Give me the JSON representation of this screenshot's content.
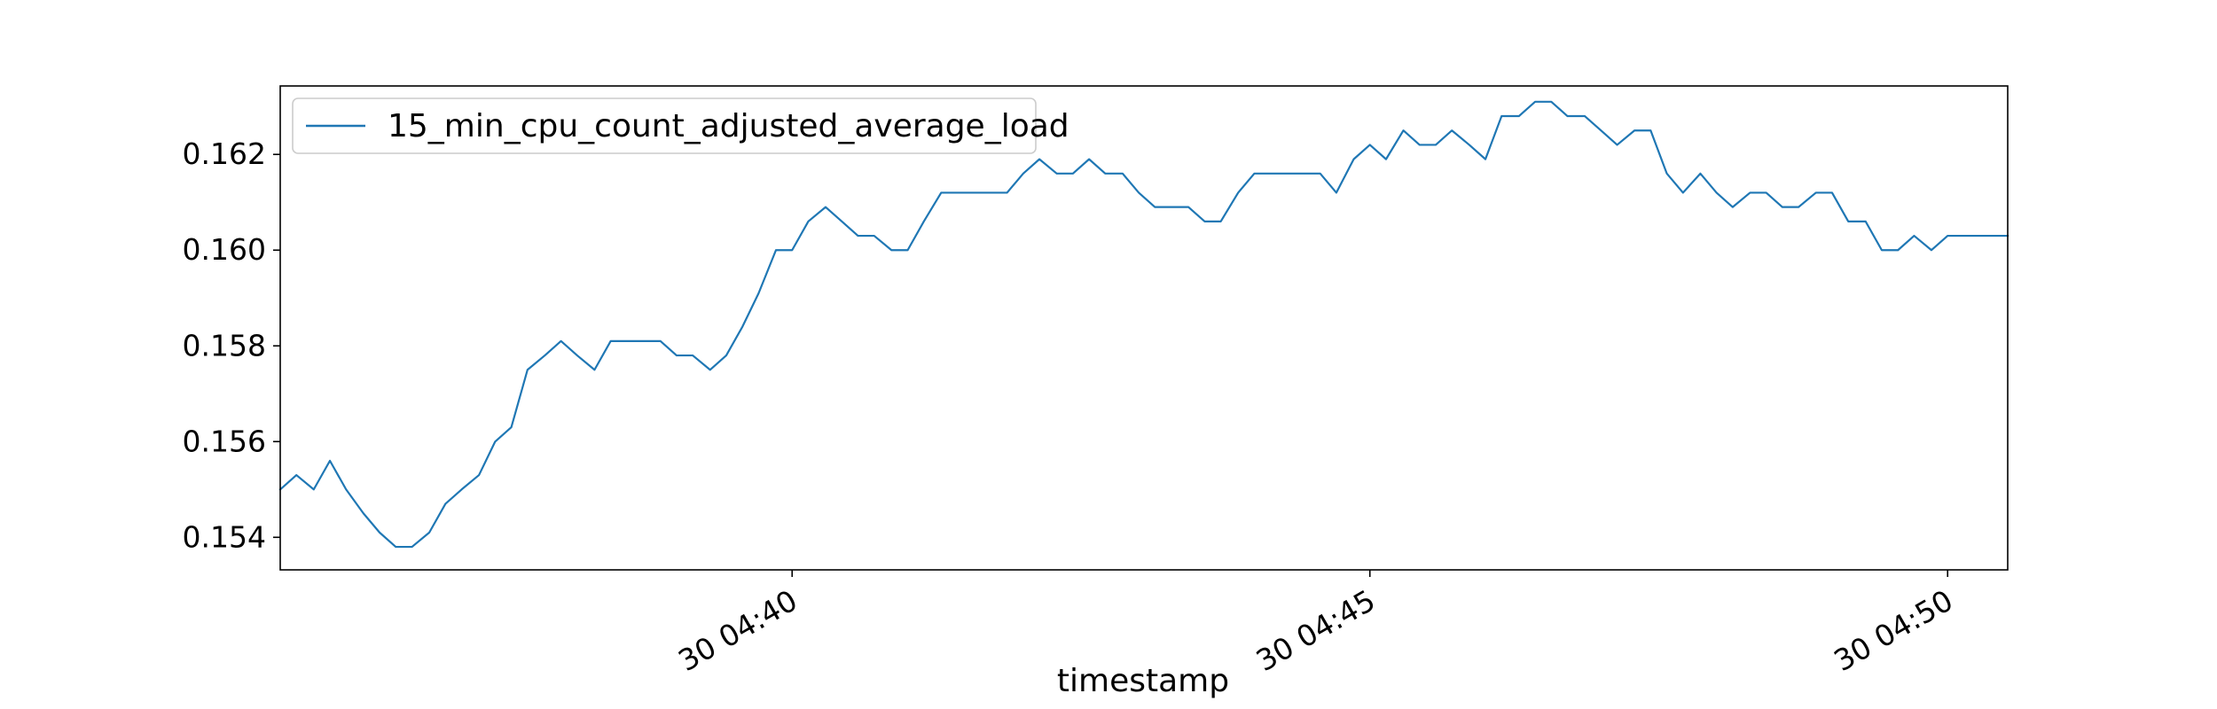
{
  "chart_data": {
    "type": "line",
    "title": "",
    "xlabel": "timestamp",
    "ylabel": "",
    "x_unit": "minutes",
    "x_start": "30 04:35:30",
    "x_tick_labels": [
      "30 04:40",
      "30 04:45",
      "30 04:50"
    ],
    "x_tick_values": [
      40.0,
      45.0,
      50.0
    ],
    "xlim": [
      35.57,
      50.52
    ],
    "y_tick_values": [
      0.154,
      0.156,
      0.158,
      0.16,
      0.162
    ],
    "y_tick_labels": [
      "0.154",
      "0.156",
      "0.158",
      "0.160",
      "0.162"
    ],
    "ylim": [
      0.15332,
      0.16343
    ],
    "grid": false,
    "legend_position": "top-left",
    "series": [
      {
        "name": "15_min_cpu_count_adjusted_average_load",
        "color": "#1f77b4",
        "x": [
          35.57,
          35.71,
          35.86,
          36.0,
          36.14,
          36.29,
          36.43,
          36.57,
          36.71,
          36.86,
          37.0,
          37.14,
          37.29,
          37.43,
          37.57,
          37.71,
          37.86,
          38.0,
          38.14,
          38.29,
          38.43,
          38.57,
          38.71,
          38.86,
          39.0,
          39.14,
          39.29,
          39.43,
          39.57,
          39.71,
          39.86,
          40.0,
          40.14,
          40.29,
          40.43,
          40.57,
          40.71,
          40.86,
          41.0,
          41.14,
          41.29,
          41.43,
          41.57,
          41.71,
          41.86,
          42.0,
          42.14,
          42.29,
          42.43,
          42.57,
          42.71,
          42.86,
          43.0,
          43.14,
          43.29,
          43.43,
          43.57,
          43.71,
          43.86,
          44.0,
          44.14,
          44.29,
          44.43,
          44.57,
          44.71,
          44.86,
          45.0,
          45.14,
          45.29,
          45.43,
          45.57,
          45.71,
          45.86,
          46.0,
          46.14,
          46.29,
          46.43,
          46.57,
          46.71,
          46.86,
          47.0,
          47.14,
          47.29,
          47.43,
          47.57,
          47.71,
          47.86,
          48.0,
          48.14,
          48.29,
          48.43,
          48.57,
          48.71,
          48.86,
          49.0,
          49.14,
          49.29,
          49.43,
          49.57,
          49.71,
          49.86,
          50.0,
          50.14,
          50.29,
          50.43,
          50.52
        ],
        "y": [
          0.155,
          0.1553,
          0.155,
          0.1556,
          0.155,
          0.1545,
          0.1541,
          0.1538,
          0.1538,
          0.1541,
          0.1547,
          0.155,
          0.1553,
          0.156,
          0.1563,
          0.1575,
          0.1578,
          0.1581,
          0.1578,
          0.1575,
          0.1581,
          0.1581,
          0.1581,
          0.1581,
          0.1578,
          0.1578,
          0.1575,
          0.1578,
          0.1584,
          0.1591,
          0.16,
          0.16,
          0.1606,
          0.1609,
          0.1606,
          0.1603,
          0.1603,
          0.16,
          0.16,
          0.1606,
          0.1612,
          0.1612,
          0.1612,
          0.1612,
          0.1612,
          0.1616,
          0.1619,
          0.1616,
          0.1616,
          0.1619,
          0.1616,
          0.1616,
          0.1612,
          0.1609,
          0.1609,
          0.1609,
          0.1606,
          0.1606,
          0.1612,
          0.1616,
          0.1616,
          0.1616,
          0.1616,
          0.1616,
          0.1612,
          0.1619,
          0.1622,
          0.1619,
          0.1625,
          0.1622,
          0.1622,
          0.1625,
          0.1622,
          0.1619,
          0.1628,
          0.1628,
          0.1631,
          0.1631,
          0.1628,
          0.1628,
          0.1625,
          0.1622,
          0.1625,
          0.1625,
          0.1616,
          0.1612,
          0.1616,
          0.1612,
          0.1609,
          0.1612,
          0.1612,
          0.1609,
          0.1609,
          0.1612,
          0.1612,
          0.1606,
          0.1606,
          0.16,
          0.16,
          0.1603,
          0.16,
          0.1603,
          0.1603,
          0.1603,
          0.1603,
          0.1603
        ]
      }
    ]
  }
}
